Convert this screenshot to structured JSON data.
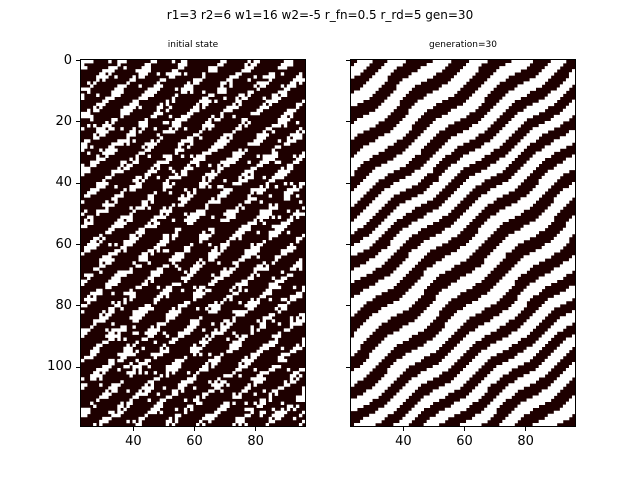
{
  "suptitle": "r1=3 r2=6 w1=16 w2=-5 r_fn=0.5 r_rd=5 gen=30",
  "chart_data": [
    {
      "type": "heatmap",
      "title": "initial state",
      "xlabel": "",
      "ylabel": "",
      "xlim": [
        22.5,
        96.5
      ],
      "ylim": [
        119.5,
        -0.5
      ],
      "x_ticks": [
        40,
        60,
        80
      ],
      "y_ticks": [
        0,
        20,
        40,
        60,
        80,
        100
      ],
      "x_tick_labels": [
        "40",
        "60",
        "80"
      ],
      "y_tick_labels": [
        "0",
        "20",
        "40",
        "60",
        "80",
        "100"
      ],
      "colormap": [
        "#1e0000",
        "#ffffff"
      ],
      "cell_states": [
        0,
        1
      ],
      "pattern": "sparse short diagonal white streaks on dark background",
      "grid": false
    },
    {
      "type": "heatmap",
      "title": "generation=30",
      "xlabel": "",
      "ylabel": "",
      "xlim": [
        22.5,
        96.5
      ],
      "ylim": [
        119.5,
        -0.5
      ],
      "x_ticks": [
        40,
        60,
        80
      ],
      "y_ticks": [
        0,
        20,
        40,
        60,
        80,
        100
      ],
      "x_tick_labels": [
        "40",
        "60",
        "80"
      ],
      "y_tick_labels": [],
      "colormap": [
        "#1e0000",
        "#ffffff"
      ],
      "cell_states": [
        0,
        1
      ],
      "pattern": "continuous diagonal labyrinth stripes (Turing pattern)",
      "grid": false
    }
  ]
}
